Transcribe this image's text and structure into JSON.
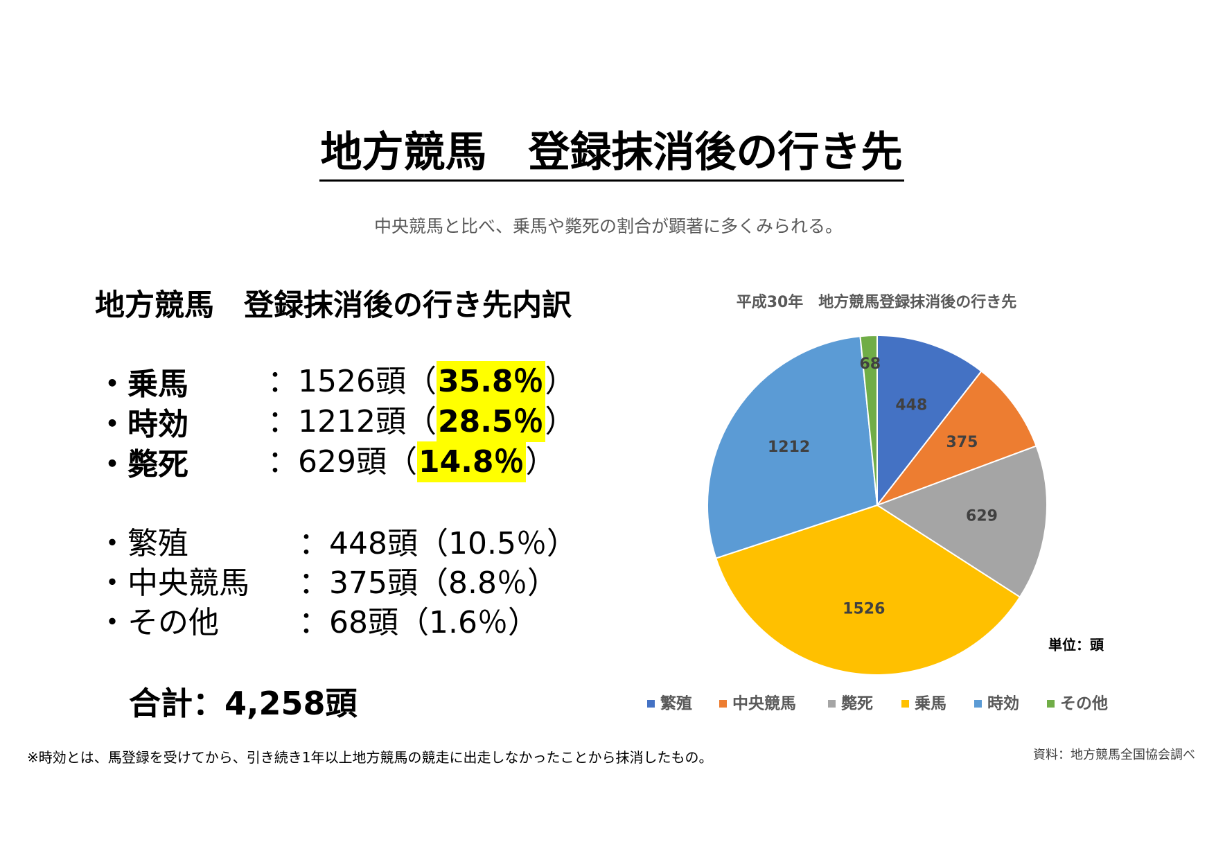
{
  "header": {
    "title": "地方競馬　登録抹消後の行き先",
    "subtitle": "中央競馬と比べ、乗馬や斃死の割合が顕著に多くみられる。"
  },
  "breakdown": {
    "heading": "地方競馬　登録抹消後の行き先内訳",
    "main_items": [
      {
        "bullet": "・",
        "label": "乗馬",
        "count": "：1526頭（",
        "percent": "35.8％",
        "close": "）"
      },
      {
        "bullet": "・",
        "label": "時効",
        "count": "：1212頭（",
        "percent": "28.5％",
        "close": "）"
      },
      {
        "bullet": "・",
        "label": "斃死",
        "count": "：629頭（",
        "percent": "14.8％",
        "close": "）"
      }
    ],
    "other_items": [
      {
        "bullet": "・",
        "label": "繁殖",
        "count": "：448頭（10.5％）"
      },
      {
        "bullet": "・",
        "label": "中央競馬",
        "count": "：375頭（8.8％）"
      },
      {
        "bullet": "・",
        "label": "その他",
        "count": "：68頭（1.6％）"
      }
    ],
    "total": "合計：4,258頭"
  },
  "chart_data": {
    "type": "pie",
    "title": "平成30年　地方競馬登録抹消後の行き先",
    "categories": [
      "繁殖",
      "中央競馬",
      "斃死",
      "乗馬",
      "時効",
      "その他"
    ],
    "values": [
      448,
      375,
      629,
      1526,
      1212,
      68
    ],
    "colors": [
      "#4472c4",
      "#ed7d31",
      "#a5a5a5",
      "#ffc000",
      "#5b9bd5",
      "#70ad47"
    ],
    "unit_note": "単位：頭"
  },
  "footer": {
    "note": "※時効とは、馬登録を受けてから、引き続き1年以上地方競馬の競走に出走しなかったことから抹消したもの。",
    "source": "資料：地方競馬全国協会調べ"
  }
}
